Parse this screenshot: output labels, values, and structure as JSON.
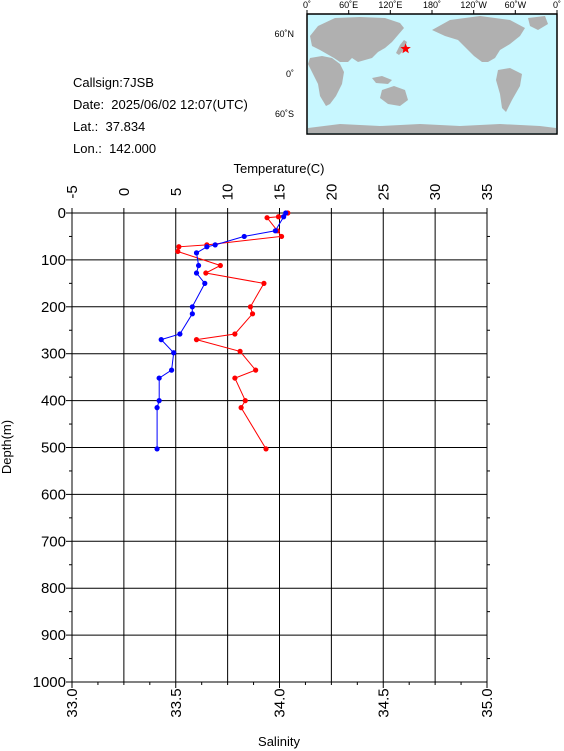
{
  "info": {
    "callsign": "Callsign:7JSB",
    "date": "Date:  2025/06/02 12:07(UTC)",
    "lat": "Lat.:  37.834",
    "lon": "Lon.:  142.000"
  },
  "map": {
    "top_labels": [
      "0˚",
      "60˚E",
      "120˚E",
      "180˚",
      "120˚W",
      "60˚W",
      "0˚"
    ],
    "right_labels": [
      "60˚N",
      "0˚",
      "60˚S"
    ],
    "ocean_color": "#c8f7ff",
    "land_color": "#b0b0b0",
    "marker_color": "#ff0000",
    "marker_lat": 37.834,
    "marker_lon": 142.0
  },
  "chart_data": {
    "type": "line",
    "xlabel_top": "Temperature(C)",
    "xlabel_bottom": "Salinity",
    "ylabel": "Depth(m)",
    "temperature_range": [
      -5,
      35
    ],
    "salinity_range": [
      33.0,
      35.0
    ],
    "depth_range": [
      0,
      1000
    ],
    "temperature_ticks": [
      "-5",
      "0",
      "5",
      "10",
      "15",
      "20",
      "25",
      "30",
      "35"
    ],
    "salinity_ticks": [
      "33.0",
      "33.5",
      "34.0",
      "34.5",
      "35.0"
    ],
    "depth_ticks": [
      "0",
      "100",
      "200",
      "300",
      "400",
      "500",
      "600",
      "700",
      "800",
      "900",
      "1000"
    ],
    "series": [
      {
        "name": "Temperature",
        "axis": "temperature",
        "color": "#ff0000",
        "points": [
          {
            "v": 15.8,
            "d": 0
          },
          {
            "v": 14.9,
            "d": 8
          },
          {
            "v": 13.8,
            "d": 10
          },
          {
            "v": 14.8,
            "d": 38
          },
          {
            "v": 15.2,
            "d": 50
          },
          {
            "v": 8.0,
            "d": 68
          },
          {
            "v": 5.3,
            "d": 72
          },
          {
            "v": 5.2,
            "d": 82
          },
          {
            "v": 9.3,
            "d": 112
          },
          {
            "v": 7.9,
            "d": 128
          },
          {
            "v": 13.5,
            "d": 150
          },
          {
            "v": 12.2,
            "d": 200
          },
          {
            "v": 12.4,
            "d": 215
          },
          {
            "v": 10.7,
            "d": 258
          },
          {
            "v": 7.0,
            "d": 270
          },
          {
            "v": 11.2,
            "d": 295
          },
          {
            "v": 12.7,
            "d": 335
          },
          {
            "v": 10.7,
            "d": 352
          },
          {
            "v": 11.7,
            "d": 400
          },
          {
            "v": 11.3,
            "d": 415
          },
          {
            "v": 13.7,
            "d": 503
          }
        ]
      },
      {
        "name": "Salinity",
        "axis": "salinity",
        "color": "#0000ff",
        "points": [
          {
            "v": 34.03,
            "d": 0
          },
          {
            "v": 34.02,
            "d": 8
          },
          {
            "v": 33.98,
            "d": 38
          },
          {
            "v": 33.83,
            "d": 50
          },
          {
            "v": 33.69,
            "d": 68
          },
          {
            "v": 33.65,
            "d": 72
          },
          {
            "v": 33.6,
            "d": 85
          },
          {
            "v": 33.61,
            "d": 112
          },
          {
            "v": 33.6,
            "d": 128
          },
          {
            "v": 33.64,
            "d": 150
          },
          {
            "v": 33.58,
            "d": 200
          },
          {
            "v": 33.58,
            "d": 215
          },
          {
            "v": 33.52,
            "d": 258
          },
          {
            "v": 33.43,
            "d": 270
          },
          {
            "v": 33.49,
            "d": 298
          },
          {
            "v": 33.48,
            "d": 335
          },
          {
            "v": 33.42,
            "d": 352
          },
          {
            "v": 33.42,
            "d": 400
          },
          {
            "v": 33.41,
            "d": 415
          },
          {
            "v": 33.41,
            "d": 503
          }
        ]
      }
    ],
    "grid": true
  }
}
